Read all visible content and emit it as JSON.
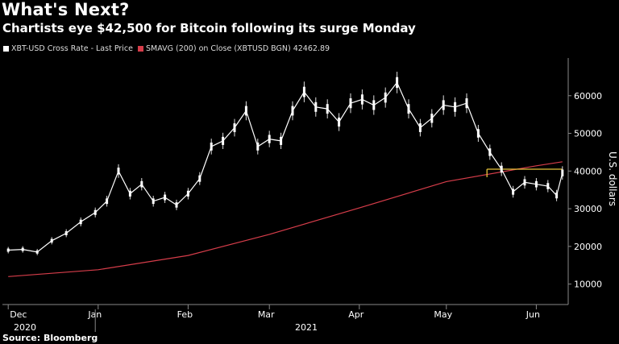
{
  "header": {
    "title": "What's Next?",
    "subtitle": "Chartists eye $42,500 for Bitcoin following its surge Monday"
  },
  "legend": {
    "series1": "XBT-USD Cross Rate - Last Price",
    "series2": "SMAVG (200)  on Close (XBTUSD BGN) 42462.89"
  },
  "source": "Source: Bloomberg",
  "colors": {
    "price": "#ffffff",
    "sma": "#d63d4a",
    "level": "#e8c33a",
    "background": "#000000"
  },
  "chart_data": {
    "type": "line",
    "title": "What's Next?",
    "ylabel": "U.S. dollars",
    "ylim": [
      5000,
      70000
    ],
    "y_ticks": [
      "10000",
      "20000",
      "30000",
      "40000",
      "50000",
      "60000"
    ],
    "x_tick_labels": [
      "Dec",
      "Jan",
      "Feb",
      "Mar",
      "Apr",
      "May",
      "Jun"
    ],
    "x_year_labels": [
      "2020",
      "2021"
    ],
    "series": [
      {
        "name": "XBT-USD Cross Rate - Last Price",
        "x": [
          "2020-12-01",
          "2020-12-06",
          "2020-12-11",
          "2020-12-16",
          "2020-12-21",
          "2020-12-26",
          "2020-12-31",
          "2021-01-04",
          "2021-01-08",
          "2021-01-12",
          "2021-01-16",
          "2021-01-20",
          "2021-01-24",
          "2021-01-28",
          "2021-02-01",
          "2021-02-05",
          "2021-02-09",
          "2021-02-13",
          "2021-02-17",
          "2021-02-21",
          "2021-02-25",
          "2021-03-01",
          "2021-03-05",
          "2021-03-09",
          "2021-03-13",
          "2021-03-17",
          "2021-03-21",
          "2021-03-25",
          "2021-03-29",
          "2021-04-02",
          "2021-04-06",
          "2021-04-10",
          "2021-04-14",
          "2021-04-18",
          "2021-04-22",
          "2021-04-26",
          "2021-04-30",
          "2021-05-04",
          "2021-05-08",
          "2021-05-12",
          "2021-05-16",
          "2021-05-20",
          "2021-05-24",
          "2021-05-28",
          "2021-06-01",
          "2021-06-05",
          "2021-06-08",
          "2021-06-10"
        ],
        "values": [
          19000,
          19200,
          18500,
          21500,
          23500,
          26500,
          29000,
          32000,
          40000,
          34000,
          36500,
          32000,
          33000,
          31000,
          34000,
          38000,
          46500,
          48000,
          51500,
          56000,
          46500,
          48500,
          48000,
          56000,
          61000,
          57000,
          56500,
          53000,
          58000,
          59000,
          57500,
          59500,
          63500,
          56500,
          51500,
          54000,
          57500,
          57000,
          58000,
          50000,
          45000,
          40500,
          34500,
          37000,
          36500,
          36000,
          33500,
          39500
        ]
      },
      {
        "name": "SMAVG (200)  on Close (XBTUSD BGN) 42462.89",
        "x": [
          "2020-12-01",
          "2021-01-01",
          "2021-02-01",
          "2021-03-01",
          "2021-04-01",
          "2021-05-01",
          "2021-06-01",
          "2021-06-10"
        ],
        "values": [
          12000,
          13800,
          17600,
          23200,
          30200,
          37200,
          41400,
          42462.89
        ]
      }
    ],
    "levels": [
      {
        "y": 40500,
        "from": "2021-05-15",
        "to": "2021-06-10"
      }
    ],
    "grid": false,
    "legend_position": "top-left"
  }
}
